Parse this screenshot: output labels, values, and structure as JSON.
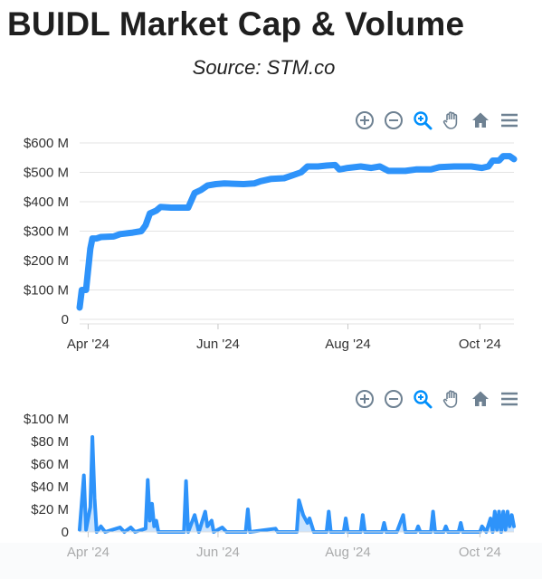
{
  "title": "BUIDL Market Cap & Volume",
  "subtitle": "Source: STM.co",
  "colors": {
    "series": "#2e93fa",
    "grid": "#e3e3e3",
    "text": "#333333",
    "icon": "#6e8192",
    "icon_active": "#008ffb"
  },
  "toolbar": [
    "zoom-in-icon",
    "zoom-out-icon",
    "zoom-select-icon",
    "pan-hand-icon",
    "home-reset-icon",
    "menu-icon"
  ],
  "chart_data": [
    {
      "type": "line",
      "name": "market-cap",
      "title": "",
      "xlabel": "",
      "ylabel": "",
      "x_ticks": [
        {
          "date": "2024-03-24",
          "label": "Apr '24"
        },
        {
          "date": "2024-05-24",
          "label": "Jun '24"
        },
        {
          "date": "2024-07-24",
          "label": "Aug '24"
        },
        {
          "date": "2024-09-24",
          "label": "Oct '24"
        }
      ],
      "xlim": [
        "2024-03-20",
        "2024-10-10"
      ],
      "y_ticks": [
        {
          "value": 0,
          "label": "0"
        },
        {
          "value": 100,
          "label": "$100 M"
        },
        {
          "value": 200,
          "label": "$200 M"
        },
        {
          "value": 300,
          "label": "$300 M"
        },
        {
          "value": 400,
          "label": "$400 M"
        },
        {
          "value": 500,
          "label": "$500 M"
        },
        {
          "value": 600,
          "label": "$600 M"
        }
      ],
      "ylim": [
        0,
        600
      ],
      "y_unit": "$ M",
      "grid": true,
      "series": [
        {
          "points": [
            [
              "2024-03-20",
              40
            ],
            [
              "2024-03-21",
              100
            ],
            [
              "2024-03-23",
              100
            ],
            [
              "2024-03-25",
              240
            ],
            [
              "2024-03-26",
              275
            ],
            [
              "2024-03-28",
              275
            ],
            [
              "2024-03-30",
              280
            ],
            [
              "2024-04-05",
              282
            ],
            [
              "2024-04-08",
              290
            ],
            [
              "2024-04-14",
              295
            ],
            [
              "2024-04-18",
              300
            ],
            [
              "2024-04-20",
              320
            ],
            [
              "2024-04-22",
              360
            ],
            [
              "2024-04-25",
              370
            ],
            [
              "2024-04-27",
              382
            ],
            [
              "2024-05-02",
              380
            ],
            [
              "2024-05-10",
              380
            ],
            [
              "2024-05-13",
              430
            ],
            [
              "2024-05-16",
              440
            ],
            [
              "2024-05-19",
              455
            ],
            [
              "2024-05-23",
              460
            ],
            [
              "2024-05-27",
              462
            ],
            [
              "2024-06-05",
              460
            ],
            [
              "2024-06-10",
              462
            ],
            [
              "2024-06-13",
              470
            ],
            [
              "2024-06-18",
              478
            ],
            [
              "2024-06-24",
              480
            ],
            [
              "2024-06-28",
              490
            ],
            [
              "2024-07-02",
              500
            ],
            [
              "2024-07-05",
              520
            ],
            [
              "2024-07-10",
              520
            ],
            [
              "2024-07-14",
              523
            ],
            [
              "2024-07-18",
              525
            ],
            [
              "2024-07-20",
              510
            ],
            [
              "2024-07-24",
              515
            ],
            [
              "2024-07-30",
              520
            ],
            [
              "2024-08-04",
              515
            ],
            [
              "2024-08-08",
              520
            ],
            [
              "2024-08-12",
              505
            ],
            [
              "2024-08-20",
              505
            ],
            [
              "2024-08-25",
              510
            ],
            [
              "2024-09-01",
              510
            ],
            [
              "2024-09-05",
              518
            ],
            [
              "2024-09-12",
              520
            ],
            [
              "2024-09-20",
              520
            ],
            [
              "2024-09-25",
              515
            ],
            [
              "2024-09-28",
              520
            ],
            [
              "2024-09-30",
              540
            ],
            [
              "2024-10-03",
              540
            ],
            [
              "2024-10-05",
              555
            ],
            [
              "2024-10-08",
              555
            ],
            [
              "2024-10-10",
              545
            ]
          ]
        }
      ]
    },
    {
      "type": "line",
      "name": "volume",
      "title": "",
      "xlabel": "",
      "ylabel": "",
      "x_ticks": [
        {
          "date": "2024-03-24",
          "label": "Apr '24"
        },
        {
          "date": "2024-05-24",
          "label": "Jun '24"
        },
        {
          "date": "2024-07-24",
          "label": "Aug '24"
        },
        {
          "date": "2024-09-24",
          "label": "Oct '24"
        }
      ],
      "xlim": [
        "2024-03-20",
        "2024-10-10"
      ],
      "y_ticks": [
        {
          "value": 0,
          "label": "0"
        },
        {
          "value": 20,
          "label": "$20 M"
        },
        {
          "value": 40,
          "label": "$40 M"
        },
        {
          "value": 60,
          "label": "$60 M"
        },
        {
          "value": 80,
          "label": "$80 M"
        },
        {
          "value": 100,
          "label": "$100 M"
        }
      ],
      "ylim": [
        0,
        100
      ],
      "y_unit": "$ M",
      "grid": false,
      "series": [
        {
          "points": [
            [
              "2024-03-20",
              2
            ],
            [
              "2024-03-22",
              50
            ],
            [
              "2024-03-23",
              2
            ],
            [
              "2024-03-25",
              22
            ],
            [
              "2024-03-26",
              84
            ],
            [
              "2024-03-27",
              30
            ],
            [
              "2024-03-28",
              0
            ],
            [
              "2024-03-30",
              5
            ],
            [
              "2024-04-01",
              0
            ],
            [
              "2024-04-08",
              4
            ],
            [
              "2024-04-10",
              0
            ],
            [
              "2024-04-13",
              4
            ],
            [
              "2024-04-15",
              0
            ],
            [
              "2024-04-20",
              3
            ],
            [
              "2024-04-21",
              46
            ],
            [
              "2024-04-22",
              10
            ],
            [
              "2024-04-23",
              25
            ],
            [
              "2024-04-24",
              5
            ],
            [
              "2024-04-25",
              10
            ],
            [
              "2024-04-26",
              0
            ],
            [
              "2024-05-08",
              0
            ],
            [
              "2024-05-09",
              45
            ],
            [
              "2024-05-10",
              0
            ],
            [
              "2024-05-13",
              15
            ],
            [
              "2024-05-15",
              0
            ],
            [
              "2024-05-18",
              18
            ],
            [
              "2024-05-19",
              5
            ],
            [
              "2024-05-21",
              10
            ],
            [
              "2024-05-22",
              0
            ],
            [
              "2024-05-26",
              4
            ],
            [
              "2024-05-28",
              0
            ],
            [
              "2024-06-06",
              0
            ],
            [
              "2024-06-07",
              20
            ],
            [
              "2024-06-08",
              0
            ],
            [
              "2024-06-20",
              3
            ],
            [
              "2024-06-21",
              0
            ],
            [
              "2024-06-30",
              0
            ],
            [
              "2024-07-01",
              28
            ],
            [
              "2024-07-03",
              15
            ],
            [
              "2024-07-05",
              8
            ],
            [
              "2024-07-06",
              12
            ],
            [
              "2024-07-08",
              0
            ],
            [
              "2024-07-14",
              0
            ],
            [
              "2024-07-15",
              18
            ],
            [
              "2024-07-16",
              0
            ],
            [
              "2024-07-22",
              0
            ],
            [
              "2024-07-23",
              12
            ],
            [
              "2024-07-24",
              0
            ],
            [
              "2024-07-30",
              0
            ],
            [
              "2024-07-31",
              15
            ],
            [
              "2024-08-01",
              0
            ],
            [
              "2024-08-09",
              0
            ],
            [
              "2024-08-10",
              8
            ],
            [
              "2024-08-11",
              0
            ],
            [
              "2024-08-16",
              0
            ],
            [
              "2024-08-19",
              15
            ],
            [
              "2024-08-20",
              0
            ],
            [
              "2024-08-25",
              0
            ],
            [
              "2024-08-26",
              5
            ],
            [
              "2024-08-27",
              0
            ],
            [
              "2024-09-01",
              0
            ],
            [
              "2024-09-02",
              18
            ],
            [
              "2024-09-03",
              0
            ],
            [
              "2024-09-07",
              0
            ],
            [
              "2024-09-08",
              5
            ],
            [
              "2024-09-09",
              0
            ],
            [
              "2024-09-14",
              0
            ],
            [
              "2024-09-15",
              8
            ],
            [
              "2024-09-16",
              0
            ],
            [
              "2024-09-24",
              0
            ],
            [
              "2024-09-25",
              5
            ],
            [
              "2024-09-27",
              0
            ],
            [
              "2024-09-29",
              12
            ],
            [
              "2024-09-30",
              0
            ],
            [
              "2024-10-01",
              18
            ],
            [
              "2024-10-02",
              2
            ],
            [
              "2024-10-03",
              18
            ],
            [
              "2024-10-04",
              0
            ],
            [
              "2024-10-05",
              18
            ],
            [
              "2024-10-06",
              2
            ],
            [
              "2024-10-07",
              18
            ],
            [
              "2024-10-08",
              5
            ],
            [
              "2024-10-09",
              15
            ],
            [
              "2024-10-10",
              5
            ]
          ]
        }
      ]
    }
  ]
}
